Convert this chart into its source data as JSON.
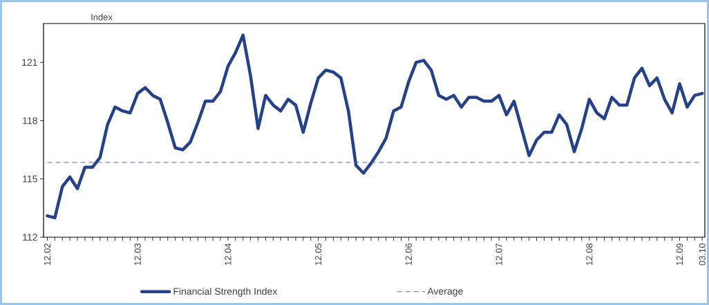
{
  "chart_data": {
    "type": "line",
    "ylabel": "Index",
    "categories": [
      "12.02",
      null,
      null,
      null,
      null,
      null,
      null,
      null,
      null,
      null,
      null,
      null,
      "12.03",
      null,
      null,
      null,
      null,
      null,
      null,
      null,
      null,
      null,
      null,
      null,
      "12.04",
      null,
      null,
      null,
      null,
      null,
      null,
      null,
      null,
      null,
      null,
      null,
      "12.05",
      null,
      null,
      null,
      null,
      null,
      null,
      null,
      null,
      null,
      null,
      null,
      "12.06",
      null,
      null,
      null,
      null,
      null,
      null,
      null,
      null,
      null,
      null,
      null,
      "12.07",
      null,
      null,
      null,
      null,
      null,
      null,
      null,
      null,
      null,
      null,
      null,
      "12.08",
      null,
      null,
      null,
      null,
      null,
      null,
      null,
      null,
      null,
      null,
      null,
      "12.09",
      null,
      null,
      "03.10"
    ],
    "series": [
      {
        "name": "Financial Strength Index",
        "color": "#25418a",
        "values": [
          113.1,
          113.0,
          114.6,
          115.1,
          114.5,
          115.6,
          115.6,
          116.1,
          117.8,
          118.7,
          118.5,
          118.4,
          119.4,
          119.7,
          119.3,
          119.1,
          117.9,
          116.6,
          116.5,
          116.9,
          117.9,
          119.0,
          119.0,
          119.5,
          120.8,
          121.5,
          122.4,
          120.3,
          117.6,
          119.3,
          118.8,
          118.5,
          119.1,
          118.8,
          117.4,
          118.9,
          120.2,
          120.6,
          120.5,
          120.2,
          118.5,
          115.7,
          115.3,
          115.8,
          116.4,
          117.1,
          118.5,
          118.7,
          120.0,
          121.0,
          121.1,
          120.6,
          119.3,
          119.1,
          119.3,
          118.7,
          119.2,
          119.2,
          119.0,
          119.0,
          119.3,
          118.3,
          119.0,
          117.6,
          116.2,
          117.0,
          117.4,
          117.4,
          118.3,
          117.8,
          116.4,
          117.6,
          119.1,
          118.4,
          118.1,
          119.2,
          118.8,
          118.8,
          120.2,
          120.7,
          119.8,
          120.2,
          119.1,
          118.4,
          119.9,
          118.7,
          119.3,
          119.4
        ]
      }
    ],
    "ylim": [
      112,
      123
    ],
    "yticks": [
      112,
      115,
      118,
      121
    ],
    "ref_lines": [
      {
        "axis": "y",
        "value": 115.85,
        "label": "Average",
        "color": "#5b6bab",
        "line_style": "dashed"
      }
    ],
    "legend": "bottom",
    "grid": false
  }
}
